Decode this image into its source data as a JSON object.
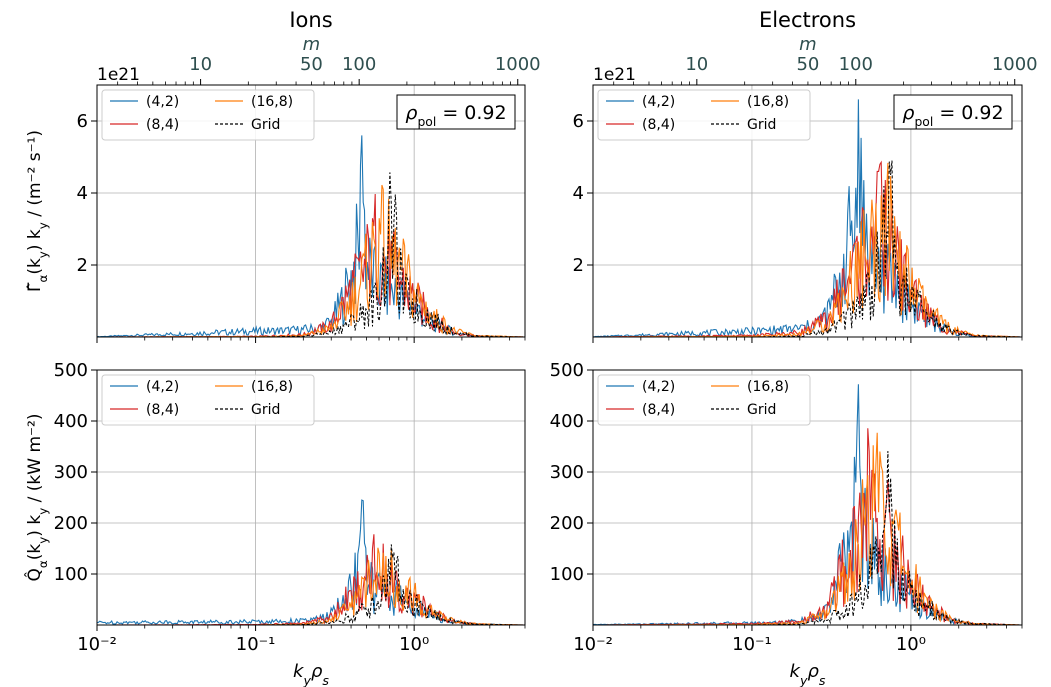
{
  "colors": {
    "(4,2)": "#1f77b4",
    "(8,4)": "#d62728",
    "(16,8)": "#ff7f0e",
    "Grid": "#000000",
    "top_axis": "#2f4f4f",
    "gridline": "#b0b0b0"
  },
  "chart_data": [
    {
      "type": "line",
      "title": "Ions",
      "quantity": "flux",
      "ylabel": "Γ̂_α(k_y) k_y / (m⁻² s⁻¹)",
      "xlabel": "",
      "xscale": "log",
      "xlim": [
        0.01,
        5.0
      ],
      "ylim": [
        0,
        7.0
      ],
      "yticks": [
        2,
        4,
        6
      ],
      "ytick_labels": [
        "2",
        "4",
        "6"
      ],
      "offset_label": "1e21",
      "xticks": [
        0.01,
        0.1,
        1.0
      ],
      "xtick_labels": [
        "10⁻²",
        "10⁻¹",
        "10⁰"
      ],
      "top_axis": {
        "label": "m",
        "ticks": [
          10,
          50,
          100,
          1000
        ],
        "tick_labels": [
          "10",
          "50",
          "100",
          "1000"
        ]
      },
      "annotation": "ρ_pol = 0.92",
      "grid": true,
      "legend_position": "top-left",
      "series": [
        {
          "name": "(4,2)",
          "style": "solid",
          "peak_x": 0.47,
          "peak_y": 5.6,
          "x": [
            0.01,
            0.1,
            0.15,
            0.2,
            0.25,
            0.3,
            0.35,
            0.4,
            0.45,
            0.47,
            0.5,
            0.55,
            0.6,
            0.7,
            0.8,
            1.0,
            1.3,
            1.8,
            2.5,
            5.0
          ],
          "y": [
            0.01,
            0.2,
            0.22,
            0.25,
            0.3,
            0.5,
            1.2,
            2.0,
            3.2,
            5.6,
            2.6,
            2.0,
            1.8,
            1.6,
            1.5,
            1.0,
            0.5,
            0.15,
            0.03,
            0.0
          ]
        },
        {
          "name": "(8,4)",
          "style": "solid",
          "peak_x": 0.55,
          "peak_y": 3.3,
          "x": [
            0.01,
            0.1,
            0.2,
            0.3,
            0.4,
            0.5,
            0.55,
            0.65,
            0.8,
            1.0,
            1.3,
            1.8,
            2.5,
            5.0
          ],
          "y": [
            0.0,
            0.02,
            0.08,
            0.4,
            1.6,
            2.4,
            3.3,
            2.6,
            2.0,
            1.3,
            0.6,
            0.15,
            0.03,
            0.0
          ]
        },
        {
          "name": "(16,8)",
          "style": "solid",
          "peak_x": 0.6,
          "peak_y": 3.3,
          "x": [
            0.01,
            0.1,
            0.2,
            0.3,
            0.4,
            0.5,
            0.6,
            0.7,
            0.85,
            1.0,
            1.3,
            1.8,
            2.5,
            5.0
          ],
          "y": [
            0.0,
            0.01,
            0.05,
            0.3,
            1.2,
            2.2,
            3.3,
            2.8,
            2.1,
            1.5,
            0.7,
            0.2,
            0.04,
            0.0
          ]
        },
        {
          "name": "Grid",
          "style": "dashed",
          "peak_x": 0.72,
          "peak_y": 3.7,
          "x": [
            0.01,
            0.1,
            0.2,
            0.3,
            0.4,
            0.5,
            0.6,
            0.72,
            0.85,
            1.0,
            1.3,
            1.8,
            2.5,
            5.0
          ],
          "y": [
            0.0,
            0.0,
            0.02,
            0.15,
            0.5,
            0.9,
            1.3,
            3.7,
            1.4,
            1.1,
            0.6,
            0.15,
            0.03,
            0.0
          ]
        }
      ]
    },
    {
      "type": "line",
      "title": "Electrons",
      "quantity": "flux",
      "ylabel": "",
      "xlabel": "",
      "xscale": "log",
      "xlim": [
        0.01,
        5.0
      ],
      "ylim": [
        0,
        7.0
      ],
      "yticks": [
        2,
        4,
        6
      ],
      "ytick_labels": [
        "2",
        "4",
        "6"
      ],
      "offset_label": "1e21",
      "xticks": [
        0.01,
        0.1,
        1.0
      ],
      "xtick_labels": [
        "10⁻²",
        "10⁻¹",
        "10⁰"
      ],
      "top_axis": {
        "label": "m",
        "ticks": [
          10,
          50,
          100,
          1000
        ],
        "tick_labels": [
          "10",
          "50",
          "100",
          "1000"
        ]
      },
      "annotation": "ρ_pol = 0.92",
      "grid": true,
      "legend_position": "top-left",
      "series": [
        {
          "name": "(4,2)",
          "style": "solid",
          "peak_x": 0.47,
          "peak_y": 6.6,
          "x": [
            0.01,
            0.1,
            0.15,
            0.2,
            0.25,
            0.3,
            0.35,
            0.4,
            0.45,
            0.47,
            0.5,
            0.55,
            0.6,
            0.7,
            0.8,
            1.0,
            1.3,
            1.8,
            2.5,
            5.0
          ],
          "y": [
            0.01,
            0.2,
            0.25,
            0.3,
            0.4,
            0.8,
            1.8,
            3.0,
            4.2,
            6.6,
            3.8,
            3.0,
            2.5,
            2.0,
            1.8,
            1.2,
            0.6,
            0.15,
            0.03,
            0.0
          ]
        },
        {
          "name": "(8,4)",
          "style": "solid",
          "peak_x": 0.62,
          "peak_y": 4.6,
          "x": [
            0.01,
            0.1,
            0.2,
            0.3,
            0.4,
            0.5,
            0.62,
            0.7,
            0.85,
            1.0,
            1.3,
            1.8,
            2.5,
            5.0
          ],
          "y": [
            0.0,
            0.05,
            0.15,
            0.6,
            2.0,
            3.0,
            4.6,
            3.3,
            2.3,
            1.5,
            0.7,
            0.2,
            0.04,
            0.0
          ]
        },
        {
          "name": "(16,8)",
          "style": "solid",
          "peak_x": 0.68,
          "peak_y": 4.0,
          "x": [
            0.01,
            0.1,
            0.2,
            0.3,
            0.4,
            0.5,
            0.6,
            0.68,
            0.85,
            1.0,
            1.3,
            1.8,
            2.5,
            5.0
          ],
          "y": [
            0.0,
            0.02,
            0.1,
            0.5,
            1.7,
            2.8,
            3.3,
            4.0,
            2.4,
            1.7,
            0.8,
            0.25,
            0.05,
            0.0
          ]
        },
        {
          "name": "Grid",
          "style": "dashed",
          "peak_x": 0.74,
          "peak_y": 4.5,
          "x": [
            0.01,
            0.1,
            0.2,
            0.3,
            0.4,
            0.5,
            0.6,
            0.74,
            0.85,
            1.0,
            1.3,
            1.8,
            2.5,
            5.0
          ],
          "y": [
            0.0,
            0.0,
            0.03,
            0.2,
            0.7,
            1.3,
            2.0,
            4.5,
            1.8,
            1.3,
            0.7,
            0.2,
            0.04,
            0.0
          ]
        }
      ]
    },
    {
      "type": "line",
      "title": "",
      "quantity": "heat",
      "ylabel": "Q̂_α(k_y) k_y / (kW m⁻²)",
      "xlabel": "k_y ρ_s",
      "xscale": "log",
      "xlim": [
        0.01,
        5.0
      ],
      "ylim": [
        0,
        500
      ],
      "yticks": [
        100,
        200,
        300,
        400,
        500
      ],
      "ytick_labels": [
        "100",
        "200",
        "300",
        "400",
        "500"
      ],
      "offset_label": "",
      "xticks": [
        0.01,
        0.1,
        1.0
      ],
      "xtick_labels": [
        "10⁻²",
        "10⁻¹",
        "10⁰"
      ],
      "annotation": "",
      "grid": true,
      "legend_position": "top-left",
      "series": [
        {
          "name": "(4,2)",
          "style": "solid",
          "peak_x": 0.47,
          "peak_y": 245,
          "x": [
            0.01,
            0.1,
            0.15,
            0.2,
            0.25,
            0.3,
            0.35,
            0.4,
            0.45,
            0.47,
            0.5,
            0.55,
            0.6,
            0.7,
            0.8,
            1.0,
            1.3,
            1.8,
            2.5,
            5.0
          ],
          "y": [
            6,
            8,
            9,
            10,
            14,
            25,
            50,
            90,
            140,
            245,
            110,
            90,
            80,
            70,
            65,
            45,
            22,
            7,
            2,
            0
          ]
        },
        {
          "name": "(8,4)",
          "style": "solid",
          "peak_x": 0.55,
          "peak_y": 150,
          "x": [
            0.01,
            0.1,
            0.2,
            0.3,
            0.4,
            0.5,
            0.55,
            0.65,
            0.8,
            1.0,
            1.3,
            1.8,
            2.5,
            5.0
          ],
          "y": [
            0,
            1,
            4,
            18,
            70,
            105,
            150,
            120,
            90,
            60,
            28,
            8,
            2,
            0
          ]
        },
        {
          "name": "(16,8)",
          "style": "solid",
          "peak_x": 0.6,
          "peak_y": 140,
          "x": [
            0.01,
            0.1,
            0.2,
            0.3,
            0.4,
            0.5,
            0.6,
            0.7,
            0.85,
            1.0,
            1.3,
            1.8,
            2.5,
            5.0
          ],
          "y": [
            0,
            0,
            2,
            12,
            50,
            95,
            140,
            120,
            90,
            65,
            30,
            9,
            2,
            0
          ]
        },
        {
          "name": "Grid",
          "style": "dashed",
          "peak_x": 0.72,
          "peak_y": 158,
          "x": [
            0.01,
            0.1,
            0.2,
            0.3,
            0.4,
            0.5,
            0.6,
            0.72,
            0.85,
            1.0,
            1.3,
            1.8,
            2.5,
            5.0
          ],
          "y": [
            0,
            0,
            1,
            6,
            20,
            38,
            55,
            158,
            60,
            48,
            25,
            7,
            2,
            0
          ]
        }
      ]
    },
    {
      "type": "line",
      "title": "",
      "quantity": "heat",
      "ylabel": "",
      "xlabel": "k_y ρ_s",
      "xscale": "log",
      "xlim": [
        0.01,
        5.0
      ],
      "ylim": [
        0,
        500
      ],
      "yticks": [
        100,
        200,
        300,
        400,
        500
      ],
      "ytick_labels": [
        "100",
        "200",
        "300",
        "400",
        "500"
      ],
      "offset_label": "",
      "xticks": [
        0.01,
        0.1,
        1.0
      ],
      "xtick_labels": [
        "10⁻²",
        "10⁻¹",
        "10⁰"
      ],
      "annotation": "",
      "grid": true,
      "legend_position": "top-left",
      "series": [
        {
          "name": "(4,2)",
          "style": "solid",
          "peak_x": 0.47,
          "peak_y": 472,
          "x": [
            0.01,
            0.1,
            0.15,
            0.2,
            0.25,
            0.3,
            0.35,
            0.4,
            0.45,
            0.47,
            0.5,
            0.55,
            0.6,
            0.7,
            0.8,
            1.0,
            1.3,
            1.8,
            2.5,
            5.0
          ],
          "y": [
            1,
            5,
            7,
            10,
            15,
            40,
            110,
            200,
            300,
            472,
            230,
            180,
            150,
            120,
            100,
            70,
            35,
            10,
            2,
            0
          ]
        },
        {
          "name": "(8,4)",
          "style": "solid",
          "peak_x": 0.55,
          "peak_y": 340,
          "x": [
            0.01,
            0.1,
            0.2,
            0.3,
            0.4,
            0.5,
            0.55,
            0.65,
            0.8,
            1.0,
            1.3,
            1.8,
            2.5,
            5.0
          ],
          "y": [
            0,
            3,
            8,
            40,
            160,
            240,
            340,
            260,
            170,
            100,
            45,
            12,
            3,
            0
          ]
        },
        {
          "name": "(16,8)",
          "style": "solid",
          "peak_x": 0.6,
          "peak_y": 315,
          "x": [
            0.01,
            0.1,
            0.2,
            0.3,
            0.4,
            0.5,
            0.6,
            0.7,
            0.85,
            1.0,
            1.3,
            1.8,
            2.5,
            5.0
          ],
          "y": [
            0,
            1,
            5,
            30,
            130,
            220,
            315,
            260,
            170,
            110,
            50,
            14,
            3,
            0
          ]
        },
        {
          "name": "Grid",
          "style": "dashed",
          "peak_x": 0.74,
          "peak_y": 288,
          "x": [
            0.01,
            0.1,
            0.2,
            0.3,
            0.4,
            0.5,
            0.6,
            0.74,
            0.85,
            1.0,
            1.3,
            1.8,
            2.5,
            5.0
          ],
          "y": [
            0,
            0,
            2,
            12,
            50,
            90,
            130,
            288,
            110,
            80,
            40,
            11,
            3,
            0
          ]
        }
      ]
    }
  ]
}
